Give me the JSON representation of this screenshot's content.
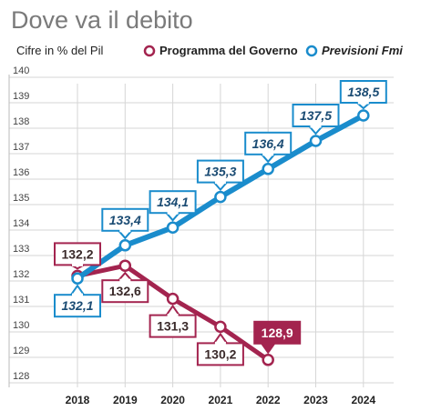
{
  "chart_data": {
    "type": "line",
    "title": "Dove va il debito",
    "subtitle": "Cifre in % del Pil",
    "x": [
      "2018",
      "2019",
      "2020",
      "2021",
      "2022",
      "2023",
      "2024"
    ],
    "ylim": [
      128,
      140
    ],
    "yticks": [
      "140",
      "139",
      "138",
      "137",
      "136",
      "135",
      "134",
      "133",
      "132",
      "131",
      "130",
      "129",
      "128"
    ],
    "grid": true,
    "legend": "top",
    "series": [
      {
        "name": "Programma del Governo",
        "color": "#a3244f",
        "x": [
          "2018",
          "2019",
          "2020",
          "2021",
          "2022"
        ],
        "values": [
          132.2,
          132.6,
          131.3,
          130.2,
          128.9
        ],
        "labels": [
          "132,2",
          "132,6",
          "131,3",
          "130,2",
          "128,9"
        ]
      },
      {
        "name": "Previsioni Fmi",
        "color": "#1a8ccc",
        "x": [
          "2018",
          "2019",
          "2020",
          "2021",
          "2022",
          "2023",
          "2024"
        ],
        "values": [
          132.1,
          133.4,
          134.1,
          135.3,
          136.4,
          137.5,
          138.5
        ],
        "labels": [
          "132,1",
          "133,4",
          "134,1",
          "135,3",
          "136,4",
          "137,5",
          "138,5"
        ]
      }
    ]
  }
}
